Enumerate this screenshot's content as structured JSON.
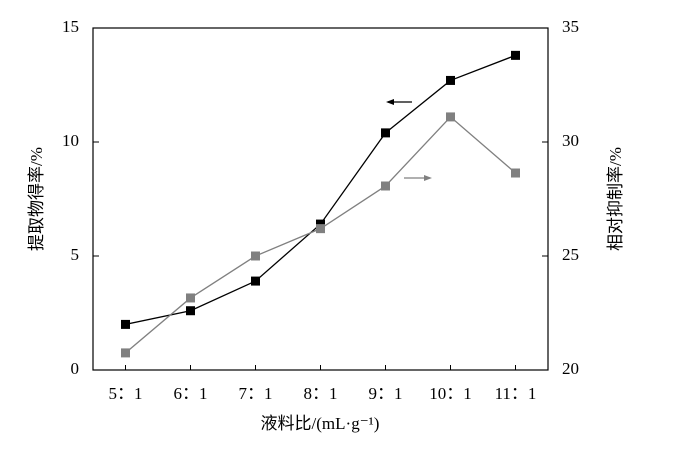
{
  "chart_data": {
    "type": "line",
    "x_label": "液料比/(mL·g⁻¹)",
    "y_label": "提取物得率/%",
    "y2_label": "相对抑制率/%",
    "categories": [
      "5：1",
      "6：1",
      "7：1",
      "8：1",
      "9：1",
      "10：1",
      "11：1"
    ],
    "series": [
      {
        "color": "#000000",
        "values": [
          2.0,
          2.6,
          3.9,
          6.4,
          10.4,
          12.7,
          13.8
        ]
      },
      {
        "color": "#808080",
        "axis": "y2",
        "values": [
          20.75,
          23.16,
          25.0,
          26.2,
          28.07,
          31.1,
          28.64
        ]
      }
    ],
    "ylim": [
      0,
      15
    ],
    "yticks": [
      0,
      5,
      10,
      15
    ],
    "y2lim": [
      20,
      35
    ],
    "y2ticks": [
      20,
      25,
      30,
      35
    ]
  }
}
